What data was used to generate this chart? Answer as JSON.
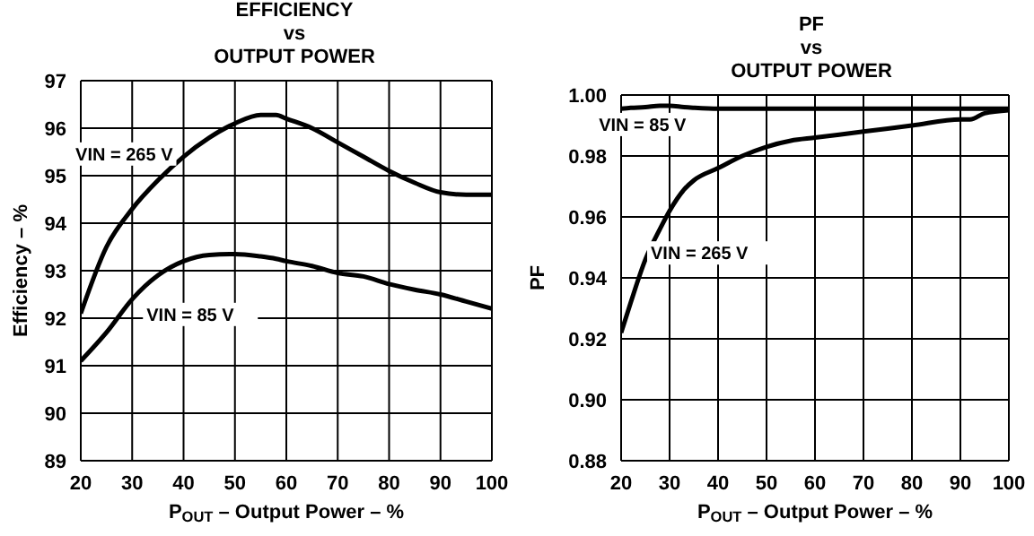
{
  "chart_data": [
    {
      "type": "line",
      "title": "EFFICIENCY\nvs\nOUTPUT POWER",
      "xlabel": "P$_{OUT}$ – Output Power – %",
      "ylabel": "Efficiency – %",
      "xlim": [
        20,
        100
      ],
      "xticks": [
        20,
        30,
        40,
        50,
        60,
        70,
        80,
        90,
        100
      ],
      "ylim": [
        89,
        97
      ],
      "yticks": [
        89,
        90,
        91,
        92,
        93,
        94,
        95,
        96,
        97
      ],
      "grid": true,
      "x": [
        20,
        25,
        30,
        35,
        40,
        45,
        50,
        55,
        58,
        60,
        65,
        70,
        75,
        80,
        85,
        90,
        95,
        100
      ],
      "series": [
        {
          "name": "VIN = 265 V",
          "color": "#000000",
          "values": [
            92.1,
            93.5,
            94.3,
            94.9,
            95.4,
            95.8,
            96.1,
            96.28,
            96.28,
            96.2,
            96.0,
            95.7,
            95.4,
            95.1,
            94.85,
            94.65,
            94.6,
            94.6
          ]
        },
        {
          "name": "VIN = 85 V",
          "color": "#000000",
          "values": [
            91.1,
            91.7,
            92.4,
            92.9,
            93.2,
            93.33,
            93.35,
            93.3,
            93.25,
            93.2,
            93.1,
            92.95,
            92.88,
            92.72,
            92.6,
            92.5,
            92.35,
            92.2
          ]
        }
      ]
    },
    {
      "type": "line",
      "title": "PF\nvs\nOUTPUT POWER",
      "xlabel": "P$_{OUT}$ – Output Power – %",
      "ylabel": "PF",
      "xlim": [
        20,
        100
      ],
      "xticks": [
        20,
        30,
        40,
        50,
        60,
        70,
        80,
        90,
        100
      ],
      "ylim": [
        0.88,
        1.0
      ],
      "yticks": [
        0.88,
        {
          "value": 0.9,
          "label": "0.90"
        },
        0.92,
        0.94,
        0.96,
        0.98,
        {
          "value": 1.0,
          "label": "1.00"
        }
      ],
      "grid": true,
      "x": [
        20,
        22,
        25,
        28,
        30,
        33,
        35,
        40,
        45,
        50,
        55,
        60,
        70,
        80,
        90,
        92,
        95,
        100
      ],
      "series": [
        {
          "name": "VIN = 85 V",
          "color": "#000000",
          "values": [
            0.9955,
            0.9958,
            0.996,
            0.9965,
            0.9965,
            0.996,
            0.9958,
            0.9955,
            0.9955,
            0.9955,
            0.9955,
            0.9955,
            0.9955,
            0.9955,
            0.9955,
            0.9955,
            0.9955,
            0.9955
          ]
        },
        {
          "name": "VIN = 265 V",
          "color": "#000000",
          "values": [
            0.922,
            0.932,
            0.946,
            0.956,
            0.962,
            0.969,
            0.972,
            0.976,
            0.98,
            0.983,
            0.985,
            0.986,
            0.988,
            0.99,
            0.992,
            0.992,
            0.994,
            0.995
          ]
        }
      ]
    }
  ]
}
